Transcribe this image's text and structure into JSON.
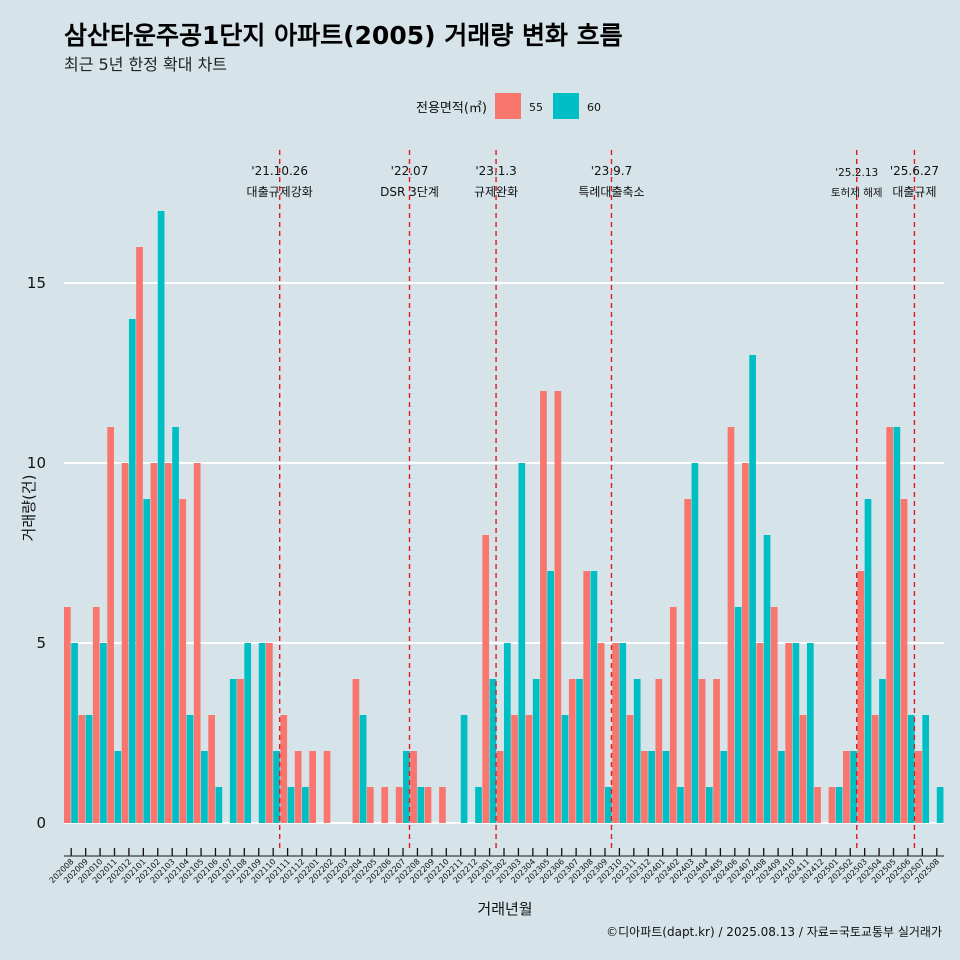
{
  "chart_data": {
    "type": "bar",
    "title": "삼산타운주공1단지 아파트(2005) 거래량 변화 흐름",
    "subtitle": "최근 5년 한정 확대 차트",
    "xlabel": "거래년월",
    "ylabel": "거래량(건)",
    "ylim": [
      0,
      17.5
    ],
    "yticks": [
      0,
      5,
      10,
      15
    ],
    "legend": {
      "title": "전용면적(㎡)",
      "position": "top"
    },
    "series": [
      {
        "name": "55",
        "color": "#F8766D"
      },
      {
        "name": "60",
        "color": "#00BFC4"
      }
    ],
    "categories": [
      "202008",
      "202009",
      "202010",
      "202011",
      "202012",
      "202101",
      "202102",
      "202103",
      "202104",
      "202105",
      "202106",
      "202107",
      "202108",
      "202109",
      "202110",
      "202111",
      "202112",
      "202201",
      "202202",
      "202203",
      "202204",
      "202205",
      "202206",
      "202207",
      "202208",
      "202209",
      "202210",
      "202211",
      "202212",
      "202301",
      "202302",
      "202303",
      "202304",
      "202305",
      "202306",
      "202307",
      "202308",
      "202309",
      "202310",
      "202311",
      "202312",
      "202401",
      "202402",
      "202403",
      "202404",
      "202405",
      "202406",
      "202407",
      "202408",
      "202409",
      "202410",
      "202411",
      "202412",
      "202501",
      "202502",
      "202503",
      "202504",
      "202505",
      "202506",
      "202507",
      "202508"
    ],
    "bars": [
      {
        "c": "202008",
        "v55": 6,
        "v60": 5
      },
      {
        "c": "202009",
        "v55": 3,
        "v60": 3
      },
      {
        "c": "202010",
        "v55": 6,
        "v60": 5
      },
      {
        "c": "202011",
        "v55": 11,
        "v60": 2
      },
      {
        "c": "202012",
        "v55": 10,
        "v60": 14
      },
      {
        "c": "202101",
        "v55": 16,
        "v60": 9
      },
      {
        "c": "202102",
        "v55": 10,
        "v60": 17
      },
      {
        "c": "202103",
        "v55": 10,
        "v60": 11
      },
      {
        "c": "202104",
        "v55": 9,
        "v60": 3
      },
      {
        "c": "202105",
        "v55": 10,
        "v60": 2
      },
      {
        "c": "202106",
        "v55": 3,
        "v60": 1
      },
      {
        "c": "202107",
        "v55": null,
        "v60": 4
      },
      {
        "c": "202108",
        "v55": 4,
        "v60": 5
      },
      {
        "c": "202109",
        "v55": null,
        "v60": 5
      },
      {
        "c": "202110",
        "v55": 5,
        "v60": 2
      },
      {
        "c": "202111",
        "v55": 3,
        "v60": 1
      },
      {
        "c": "202112",
        "v55": 2,
        "v60": 1
      },
      {
        "c": "202201",
        "v55": 2,
        "v60": null
      },
      {
        "c": "202202",
        "v55": 2,
        "v60": null
      },
      {
        "c": "202203",
        "v55": null,
        "v60": null
      },
      {
        "c": "202204",
        "v55": 4,
        "v60": 3
      },
      {
        "c": "202205",
        "v55": 1,
        "v60": null
      },
      {
        "c": "202206",
        "v55": 1,
        "v60": null
      },
      {
        "c": "202207",
        "v55": 1,
        "v60": 2
      },
      {
        "c": "202208",
        "v55": 2,
        "v60": 1
      },
      {
        "c": "202209",
        "v55": 1,
        "v60": null
      },
      {
        "c": "202210",
        "v55": 1,
        "v60": null
      },
      {
        "c": "202211",
        "v55": null,
        "v60": 3
      },
      {
        "c": "202212",
        "v55": null,
        "v60": 1
      },
      {
        "c": "202301",
        "v55": 8,
        "v60": 4
      },
      {
        "c": "202302",
        "v55": 2,
        "v60": 5
      },
      {
        "c": "202303",
        "v55": 3,
        "v60": 10
      },
      {
        "c": "202304",
        "v55": 3,
        "v60": 4
      },
      {
        "c": "202305",
        "v55": 12,
        "v60": 7
      },
      {
        "c": "202306",
        "v55": 12,
        "v60": 3
      },
      {
        "c": "202307",
        "v55": 4,
        "v60": 4
      },
      {
        "c": "202308",
        "v55": 7,
        "v60": 7
      },
      {
        "c": "202309",
        "v55": 5,
        "v60": 1
      },
      {
        "c": "202310",
        "v55": 5,
        "v60": 5
      },
      {
        "c": "202311",
        "v55": 3,
        "v60": 4
      },
      {
        "c": "202312",
        "v55": 2,
        "v60": 2
      },
      {
        "c": "202401",
        "v55": 4,
        "v60": 2
      },
      {
        "c": "202402",
        "v55": 6,
        "v60": 1
      },
      {
        "c": "202403",
        "v55": 9,
        "v60": 10
      },
      {
        "c": "202404",
        "v55": 4,
        "v60": 1
      },
      {
        "c": "202405",
        "v55": 4,
        "v60": 2
      },
      {
        "c": "202406",
        "v55": 11,
        "v60": 6
      },
      {
        "c": "202407",
        "v55": 10,
        "v60": 13
      },
      {
        "c": "202408",
        "v55": 5,
        "v60": 8
      },
      {
        "c": "202409",
        "v55": 6,
        "v60": 2
      },
      {
        "c": "202410",
        "v55": 5,
        "v60": 5
      },
      {
        "c": "202411",
        "v55": 3,
        "v60": 5
      },
      {
        "c": "202412",
        "v55": 1,
        "v60": null
      },
      {
        "c": "202501",
        "v55": 1,
        "v60": 1
      },
      {
        "c": "202502",
        "v55": 2,
        "v60": 2
      },
      {
        "c": "202503",
        "v55": 7,
        "v60": 9
      },
      {
        "c": "202504",
        "v55": 3,
        "v60": 4
      },
      {
        "c": "202505",
        "v55": 11,
        "v60": 11
      },
      {
        "c": "202506",
        "v55": 9,
        "v60": 3
      },
      {
        "c": "202507",
        "v55": 2,
        "v60": 3
      },
      {
        "c": "202508",
        "v55": null,
        "v60": 1
      }
    ],
    "annotations": [
      {
        "after": "202110",
        "date": "'21.10.26",
        "label": "대출규제강화",
        "small": false
      },
      {
        "after": "202207",
        "date": "'22.07",
        "label": "DSR 3단계",
        "small": false
      },
      {
        "after": "202301",
        "date": "'23.1.3",
        "label": "규제완화",
        "small": false
      },
      {
        "after": "202309",
        "date": "'23.9.7",
        "label": "특례대출축소",
        "small": false
      },
      {
        "after": "202502",
        "date": "'25.2.13",
        "label": "토허제 해제",
        "small": true
      },
      {
        "after": "202506",
        "date": "'25.6.27",
        "label": "대출규제",
        "small": false
      }
    ],
    "caption": "©디아파트(dapt.kr) / 2025.08.13 / 자료=국토교통부 실거래가"
  }
}
